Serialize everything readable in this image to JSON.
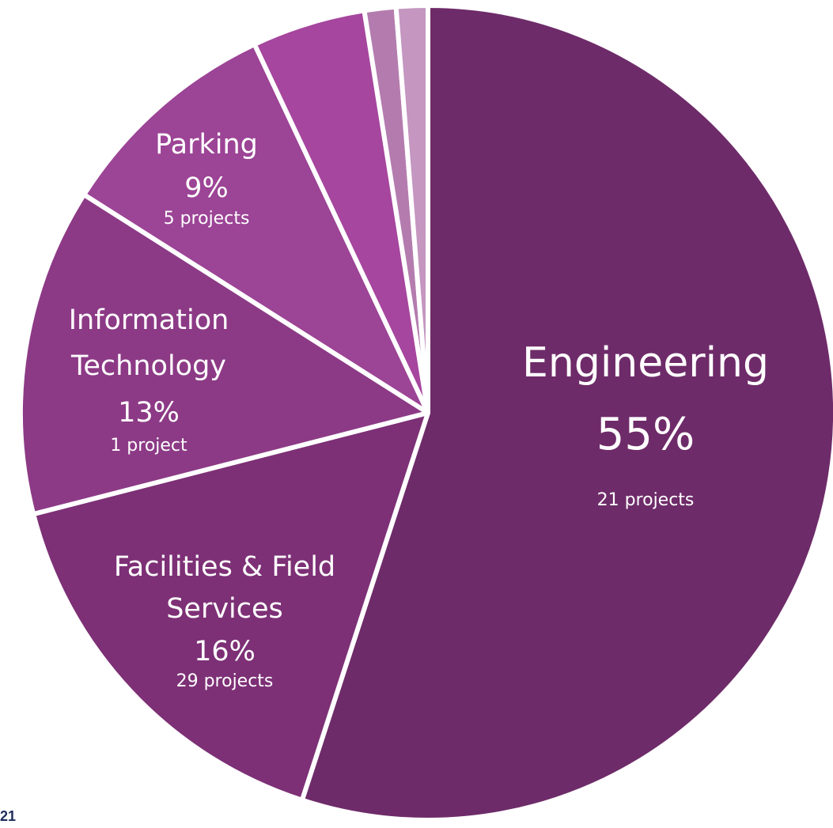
{
  "page_number": "21",
  "chart_data": {
    "type": "pie",
    "title": "",
    "start": "12 o'clock",
    "direction": "clockwise",
    "slices": [
      {
        "name": "Engineering",
        "value": 55,
        "percent_label": "55%",
        "count_label": "21 projects",
        "color": "#6e2b69"
      },
      {
        "name": "Facilities & Field Services",
        "value": 16,
        "percent_label": "16%",
        "count_label": "29 projects",
        "color": "#7d3076"
      },
      {
        "name": "Information Technology",
        "value": 13,
        "percent_label": "13%",
        "count_label": "1 project",
        "color": "#8c3a86"
      },
      {
        "name": "Parking",
        "value": 9,
        "percent_label": "9%",
        "count_label": "5 projects",
        "color": "#9c4496"
      },
      {
        "name": "",
        "value": 4.5,
        "percent_label": "",
        "count_label": "",
        "color": "#a6469e"
      },
      {
        "name": "",
        "value": 1.25,
        "percent_label": "",
        "count_label": "",
        "color": "#b47cae"
      },
      {
        "name": "",
        "value": 1.25,
        "percent_label": "",
        "count_label": "",
        "color": "#c496c0"
      }
    ]
  }
}
